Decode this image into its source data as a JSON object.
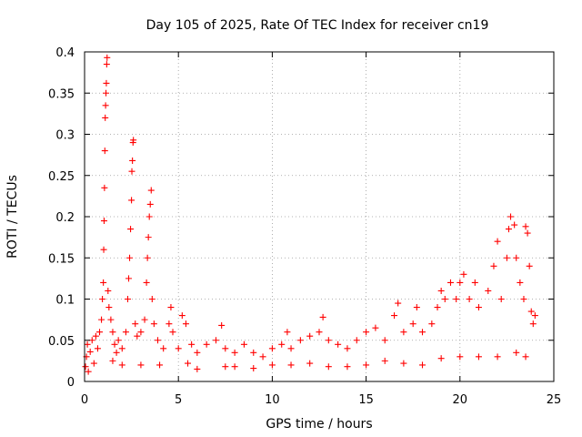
{
  "chart_data": {
    "type": "scatter",
    "title": "Day 105 of 2025, Rate Of TEC Index for receiver cn19",
    "xlabel": "GPS time / hours",
    "ylabel": "ROTI / TECUs",
    "xlim": [
      0,
      25
    ],
    "ylim": [
      0,
      0.4
    ],
    "xticks": [
      0,
      5,
      10,
      15,
      20,
      25
    ],
    "xtick_labels": [
      "0",
      "5",
      "10",
      "15",
      "20",
      "25"
    ],
    "yticks": [
      0,
      0.05,
      0.1,
      0.15,
      0.2,
      0.25,
      0.3,
      0.35,
      0.4
    ],
    "ytick_labels": [
      "0",
      "0.05",
      "0.1",
      "0.15",
      "0.2",
      "0.25",
      "0.3",
      "0.35",
      "0.4"
    ],
    "grid": true,
    "marker": "plus",
    "color": "#ff0000",
    "series": [
      {
        "values_xy": [
          [
            0.05,
            0.018
          ],
          [
            0.1,
            0.03
          ],
          [
            0.15,
            0.045
          ],
          [
            0.2,
            0.012
          ],
          [
            0.3,
            0.036
          ],
          [
            0.4,
            0.05
          ],
          [
            0.5,
            0.022
          ],
          [
            0.6,
            0.055
          ],
          [
            0.7,
            0.04
          ],
          [
            0.8,
            0.06
          ],
          [
            0.9,
            0.075
          ],
          [
            0.95,
            0.1
          ],
          [
            1.0,
            0.12
          ],
          [
            1.02,
            0.16
          ],
          [
            1.04,
            0.195
          ],
          [
            1.06,
            0.235
          ],
          [
            1.08,
            0.28
          ],
          [
            1.1,
            0.32
          ],
          [
            1.12,
            0.335
          ],
          [
            1.14,
            0.35
          ],
          [
            1.16,
            0.362
          ],
          [
            1.18,
            0.385
          ],
          [
            1.2,
            0.393
          ],
          [
            1.25,
            0.11
          ],
          [
            1.3,
            0.09
          ],
          [
            1.4,
            0.075
          ],
          [
            1.5,
            0.06
          ],
          [
            1.6,
            0.045
          ],
          [
            1.7,
            0.035
          ],
          [
            1.8,
            0.05
          ],
          [
            2.0,
            0.04
          ],
          [
            2.2,
            0.06
          ],
          [
            2.3,
            0.1
          ],
          [
            2.35,
            0.125
          ],
          [
            2.4,
            0.15
          ],
          [
            2.45,
            0.185
          ],
          [
            2.5,
            0.22
          ],
          [
            2.52,
            0.255
          ],
          [
            2.55,
            0.268
          ],
          [
            2.58,
            0.29
          ],
          [
            2.6,
            0.293
          ],
          [
            2.7,
            0.07
          ],
          [
            2.8,
            0.055
          ],
          [
            3.0,
            0.06
          ],
          [
            3.2,
            0.075
          ],
          [
            3.3,
            0.12
          ],
          [
            3.35,
            0.15
          ],
          [
            3.4,
            0.175
          ],
          [
            3.45,
            0.2
          ],
          [
            3.5,
            0.215
          ],
          [
            3.55,
            0.232
          ],
          [
            3.6,
            0.1
          ],
          [
            3.7,
            0.07
          ],
          [
            3.9,
            0.05
          ],
          [
            4.2,
            0.04
          ],
          [
            4.5,
            0.07
          ],
          [
            4.6,
            0.09
          ],
          [
            4.7,
            0.06
          ],
          [
            5.0,
            0.04
          ],
          [
            5.2,
            0.08
          ],
          [
            5.4,
            0.07
          ],
          [
            5.7,
            0.045
          ],
          [
            6.0,
            0.035
          ],
          [
            6.5,
            0.045
          ],
          [
            7.0,
            0.05
          ],
          [
            7.3,
            0.068
          ],
          [
            7.5,
            0.04
          ],
          [
            8.0,
            0.035
          ],
          [
            8.5,
            0.045
          ],
          [
            9.0,
            0.035
          ],
          [
            9.5,
            0.03
          ],
          [
            10.0,
            0.04
          ],
          [
            10.5,
            0.045
          ],
          [
            10.8,
            0.06
          ],
          [
            11.0,
            0.04
          ],
          [
            11.5,
            0.05
          ],
          [
            12.0,
            0.055
          ],
          [
            12.5,
            0.06
          ],
          [
            12.7,
            0.078
          ],
          [
            13.0,
            0.05
          ],
          [
            13.5,
            0.045
          ],
          [
            14.0,
            0.04
          ],
          [
            14.5,
            0.05
          ],
          [
            15.0,
            0.06
          ],
          [
            15.5,
            0.065
          ],
          [
            16.0,
            0.05
          ],
          [
            16.5,
            0.08
          ],
          [
            16.7,
            0.095
          ],
          [
            17.0,
            0.06
          ],
          [
            17.5,
            0.07
          ],
          [
            17.7,
            0.09
          ],
          [
            18.0,
            0.06
          ],
          [
            18.5,
            0.07
          ],
          [
            18.8,
            0.09
          ],
          [
            19.0,
            0.11
          ],
          [
            19.2,
            0.1
          ],
          [
            19.5,
            0.12
          ],
          [
            19.8,
            0.1
          ],
          [
            20.0,
            0.12
          ],
          [
            20.2,
            0.13
          ],
          [
            20.5,
            0.1
          ],
          [
            20.8,
            0.12
          ],
          [
            21.0,
            0.09
          ],
          [
            21.5,
            0.11
          ],
          [
            21.8,
            0.14
          ],
          [
            22.0,
            0.17
          ],
          [
            22.2,
            0.1
          ],
          [
            22.5,
            0.15
          ],
          [
            22.6,
            0.185
          ],
          [
            22.7,
            0.2
          ],
          [
            22.9,
            0.19
          ],
          [
            23.0,
            0.15
          ],
          [
            23.2,
            0.12
          ],
          [
            23.4,
            0.1
          ],
          [
            23.5,
            0.188
          ],
          [
            23.6,
            0.18
          ],
          [
            23.7,
            0.14
          ],
          [
            23.8,
            0.085
          ],
          [
            23.9,
            0.07
          ],
          [
            24.0,
            0.08
          ],
          [
            2.0,
            0.02
          ],
          [
            4.0,
            0.02
          ],
          [
            6.0,
            0.015
          ],
          [
            8.0,
            0.018
          ],
          [
            10.0,
            0.02
          ],
          [
            12.0,
            0.022
          ],
          [
            14.0,
            0.018
          ],
          [
            16.0,
            0.025
          ],
          [
            18.0,
            0.02
          ],
          [
            20.0,
            0.03
          ],
          [
            22.0,
            0.03
          ],
          [
            23.0,
            0.035
          ],
          [
            1.5,
            0.025
          ],
          [
            3.0,
            0.02
          ],
          [
            5.5,
            0.022
          ],
          [
            7.5,
            0.018
          ],
          [
            9.0,
            0.016
          ],
          [
            11.0,
            0.02
          ],
          [
            13.0,
            0.018
          ],
          [
            15.0,
            0.02
          ],
          [
            17.0,
            0.022
          ],
          [
            19.0,
            0.028
          ],
          [
            21.0,
            0.03
          ],
          [
            23.5,
            0.03
          ]
        ]
      }
    ]
  }
}
